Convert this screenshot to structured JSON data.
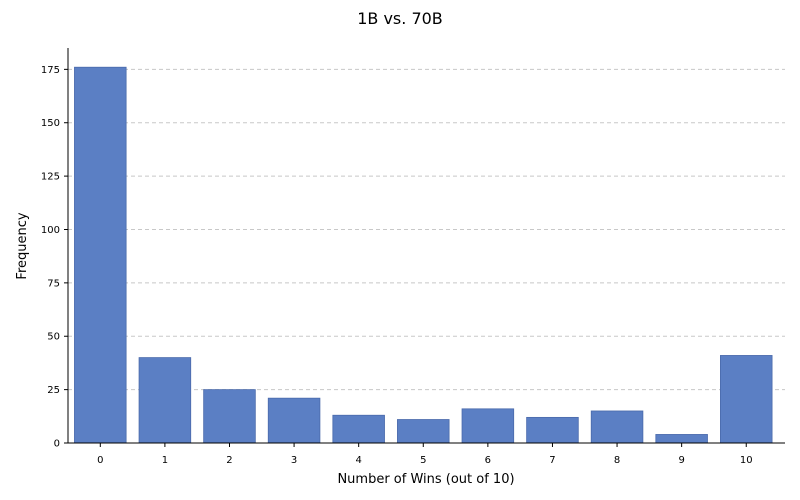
{
  "chart_data": {
    "type": "bar",
    "title": "1B vs. 70B",
    "xlabel": "Number of Wins (out of 10)",
    "ylabel": "Frequency",
    "categories": [
      "0",
      "1",
      "2",
      "3",
      "4",
      "5",
      "6",
      "7",
      "8",
      "9",
      "10"
    ],
    "values": [
      176,
      40,
      25,
      21,
      13,
      11,
      16,
      12,
      15,
      4,
      41
    ],
    "ylim": [
      0,
      185
    ],
    "yticks": [
      0,
      25,
      50,
      75,
      100,
      125,
      150,
      175
    ],
    "grid": "y-dashed",
    "bar_color": "#5b7fc4",
    "bar_edge_color": "#4a6aab"
  }
}
